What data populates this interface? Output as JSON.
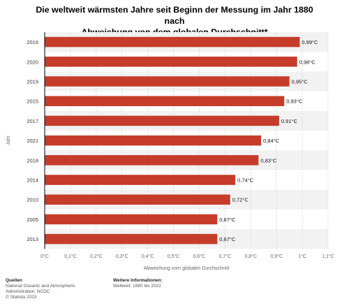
{
  "title": {
    "line1": "Die weltweit wärmsten Jahre seit Beginn der Messung im Jahr 1880 nach",
    "line2": "Abweichung von dem globalen Durchschnitt*"
  },
  "footer": {
    "sources_heading": "Quellen",
    "sources_line1": "National Oceanic and Atmospheric",
    "sources_line2": "Administration; NCDC",
    "sources_line3": "© Statista 2023",
    "info_heading": "Weitere Informationen:",
    "info_line1": "Weltweit; 1880 bis 2022"
  },
  "chart_data": {
    "type": "bar",
    "orientation": "horizontal",
    "categories": [
      "2016",
      "2020",
      "2019",
      "2015",
      "2017",
      "2021",
      "2018",
      "2014",
      "2010",
      "2005",
      "2013"
    ],
    "values": [
      0.99,
      0.98,
      0.95,
      0.93,
      0.91,
      0.84,
      0.83,
      0.74,
      0.72,
      0.67,
      0.67
    ],
    "data_labels": [
      "0,99°C",
      "0,98°C",
      "0,95°C",
      "0,93°C",
      "0,91°C",
      "0,84°C",
      "0,83°C",
      "0,74°C",
      "0,72°C",
      "0,67°C",
      "0,67°C"
    ],
    "xticks": [
      0,
      0.1,
      0.2,
      0.3,
      0.4,
      0.5,
      0.6,
      0.7,
      0.8,
      0.9,
      1.0,
      1.1
    ],
    "xtick_labels": [
      "0°C",
      "0,1°C",
      "0,2°C",
      "0,3°C",
      "0,4°C",
      "0,5°C",
      "0,6°C",
      "0,7°C",
      "0,8°C",
      "0,9°C",
      "1°C",
      "1,1°C"
    ],
    "xlim": [
      0,
      1.1
    ],
    "xlabel": "Abweichung vom globalen Durchschnitt",
    "ylabel": "Jahr",
    "bar_color": "#c63c2a",
    "grid": true,
    "alternating_row_bands": true
  }
}
